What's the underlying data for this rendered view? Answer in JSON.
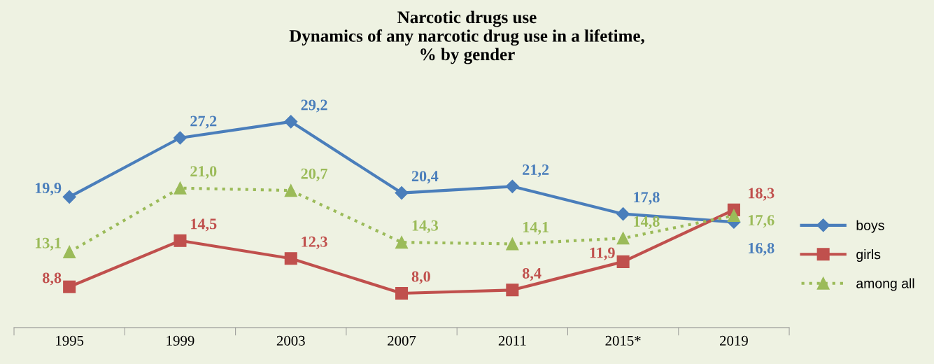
{
  "chart_data": {
    "type": "line",
    "title": "Narcotic drugs use\nDynamics of any narcotic drug use in a lifetime,\n% by gender",
    "categories": [
      "1995",
      "1999",
      "2003",
      "2007",
      "2011",
      "2015*",
      "2019"
    ],
    "series": [
      {
        "name": "boys",
        "color": "#4a7ebb",
        "marker": "diamond",
        "line_style": "solid",
        "values": [
          19.9,
          27.2,
          29.2,
          20.4,
          21.2,
          17.8,
          16.8
        ],
        "value_labels": [
          "19,9",
          "27,2",
          "29,2",
          "20,4",
          "21,2",
          "17,8",
          "16,8"
        ]
      },
      {
        "name": "girls",
        "color": "#c0504d",
        "marker": "square",
        "line_style": "solid",
        "values": [
          8.8,
          14.5,
          12.3,
          8.0,
          8.4,
          11.9,
          18.3
        ],
        "value_labels": [
          "8,8",
          "14,5",
          "12,3",
          "8,0",
          "8,4",
          "11,9",
          "18,3"
        ]
      },
      {
        "name": "among all",
        "color": "#9bbb59",
        "marker": "triangle",
        "line_style": "dotted",
        "values": [
          13.1,
          21.0,
          20.7,
          14.3,
          14.1,
          14.8,
          17.6
        ],
        "value_labels": [
          "13,1",
          "21,0",
          "20,7",
          "14,3",
          "14,1",
          "14,8",
          "17,6"
        ]
      }
    ],
    "legend": "right",
    "grid": false,
    "tick_labels": "x"
  }
}
